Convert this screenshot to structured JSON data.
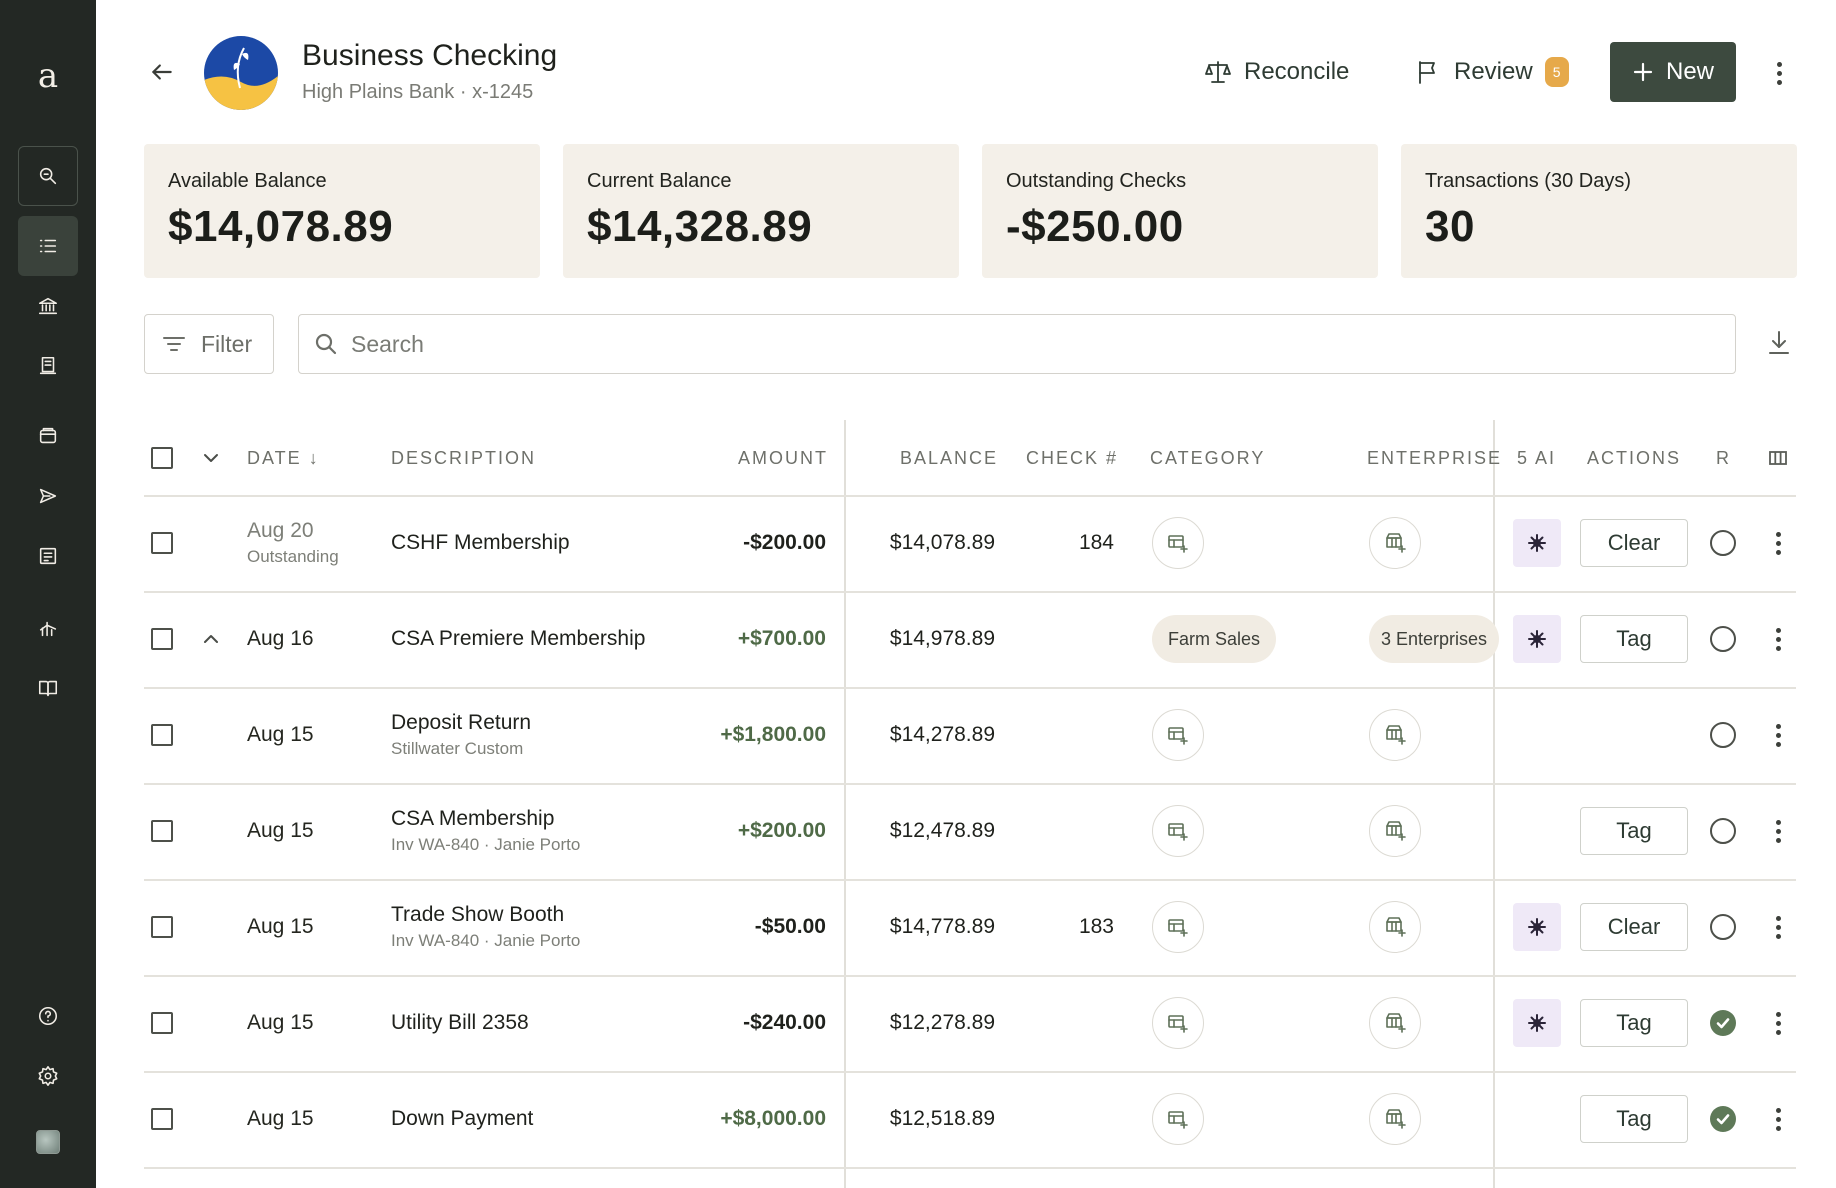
{
  "sidebar": {
    "logo": "a",
    "items": [
      {
        "name": "search",
        "icon": "search-icon"
      },
      {
        "name": "transactions",
        "icon": "list-icon",
        "active": true
      },
      {
        "name": "banking",
        "icon": "bank-icon"
      },
      {
        "name": "receipts",
        "icon": "receipt-icon"
      },
      {
        "name": "wallet",
        "icon": "wallet-icon"
      },
      {
        "name": "send",
        "icon": "send-icon"
      },
      {
        "name": "invoices",
        "icon": "invoice-icon"
      },
      {
        "name": "reports",
        "icon": "chart-icon"
      },
      {
        "name": "ledger",
        "icon": "book-icon"
      },
      {
        "name": "help",
        "icon": "help-icon"
      },
      {
        "name": "settings",
        "icon": "gear-icon"
      },
      {
        "name": "profile",
        "icon": "avatar"
      }
    ]
  },
  "header": {
    "title": "Business Checking",
    "subtitle": "High Plains Bank · x-1245",
    "reconcile_label": "Reconcile",
    "review_label": "Review",
    "review_count": "5",
    "new_label": "New"
  },
  "cards": [
    {
      "label": "Available Balance",
      "value": "$14,078.89"
    },
    {
      "label": "Current Balance",
      "value": "$14,328.89"
    },
    {
      "label": "Outstanding Checks",
      "value": "-$250.00"
    },
    {
      "label": "Transactions (30 Days)",
      "value": "30"
    }
  ],
  "toolbar": {
    "filter_label": "Filter",
    "search_placeholder": "Search"
  },
  "table": {
    "columns": {
      "date": "DATE",
      "description": "DESCRIPTION",
      "amount": "AMOUNT",
      "balance": "BALANCE",
      "check": "CHECK #",
      "category": "CATEGORY",
      "enterprise": "ENTERPRISE",
      "ai": "5 AI",
      "actions": "ACTIONS",
      "reconciled": "R"
    },
    "rows": [
      {
        "date": "Aug 20",
        "date_sub": "Outstanding",
        "description": "CSHF Membership",
        "description_sub": "",
        "amount": "-$200.00",
        "sign": "neg",
        "balance": "$14,078.89",
        "check": "184",
        "category": "",
        "enterprise": "",
        "ai": true,
        "action": "Clear",
        "reconciled": false,
        "expanded": false
      },
      {
        "date": "Aug 16",
        "date_sub": "",
        "description": "CSA Premiere Membership",
        "description_sub": "",
        "amount": "+$700.00",
        "sign": "pos",
        "balance": "$14,978.89",
        "check": "",
        "category": "Farm Sales",
        "enterprise": "3 Enterprises",
        "ai": true,
        "action": "Tag",
        "reconciled": false,
        "expanded": true
      },
      {
        "date": "Aug 15",
        "date_sub": "",
        "description": "Deposit Return",
        "description_sub": "Stillwater Custom",
        "amount": "+$1,800.00",
        "sign": "pos",
        "balance": "$14,278.89",
        "check": "",
        "category": "",
        "enterprise": "",
        "ai": false,
        "action": "",
        "reconciled": false,
        "expanded": false
      },
      {
        "date": "Aug 15",
        "date_sub": "",
        "description": "CSA Membership",
        "description_sub": "Inv WA-840 · Janie Porto",
        "amount": "+$200.00",
        "sign": "pos",
        "balance": "$12,478.89",
        "check": "",
        "category": "",
        "enterprise": "",
        "ai": false,
        "action": "Tag",
        "reconciled": false,
        "expanded": false
      },
      {
        "date": "Aug 15",
        "date_sub": "",
        "description": "Trade Show Booth",
        "description_sub": "Inv WA-840 · Janie Porto",
        "amount": "-$50.00",
        "sign": "neg",
        "balance": "$14,778.89",
        "check": "183",
        "category": "",
        "enterprise": "",
        "ai": true,
        "action": "Clear",
        "reconciled": false,
        "expanded": false
      },
      {
        "date": "Aug 15",
        "date_sub": "",
        "description": "Utility Bill 2358",
        "description_sub": "",
        "amount": "-$240.00",
        "sign": "neg",
        "balance": "$12,278.89",
        "check": "",
        "category": "",
        "enterprise": "",
        "ai": true,
        "action": "Tag",
        "reconciled": true,
        "expanded": false
      },
      {
        "date": "Aug 15",
        "date_sub": "",
        "description": "Down Payment",
        "description_sub": "",
        "amount": "+$8,000.00",
        "sign": "pos",
        "balance": "$12,518.89",
        "check": "",
        "category": "",
        "enterprise": "",
        "ai": false,
        "action": "Tag",
        "reconciled": true,
        "expanded": false
      }
    ]
  },
  "colors": {
    "sidebar_bg": "#232824",
    "primary_button": "#3d4a3f",
    "card_bg": "#f4f0e9",
    "positive_amount": "#4f6a47",
    "review_badge": "#e6a94a",
    "ai_button_bg": "#efe9f7",
    "reconciled_check": "#5e7958"
  }
}
